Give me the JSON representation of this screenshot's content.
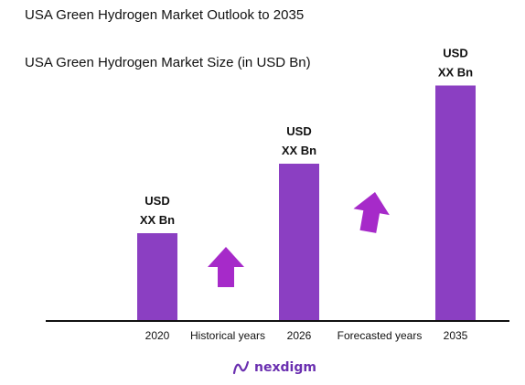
{
  "title": "USA Green Hydrogen Market Outlook to 2035",
  "chart_data": {
    "type": "bar",
    "title": "USA Green Hydrogen Market Size (in USD Bn)",
    "categories": [
      "2020",
      "2026",
      "2035"
    ],
    "values": [
      1,
      1.8,
      2.7
    ],
    "data_labels": [
      [
        "USD",
        "XX Bn"
      ],
      [
        "USD",
        "XX Bn"
      ],
      [
        "USD",
        "XX Bn"
      ]
    ],
    "period_labels": [
      "Historical years",
      "Forecasted years"
    ],
    "bar_color": "#8b3fc2",
    "arrow_color": "#a62ac9",
    "axis_color": "#111111",
    "grid": false
  },
  "brand": {
    "name": "nexdigm",
    "color": "#6a2fb0"
  }
}
